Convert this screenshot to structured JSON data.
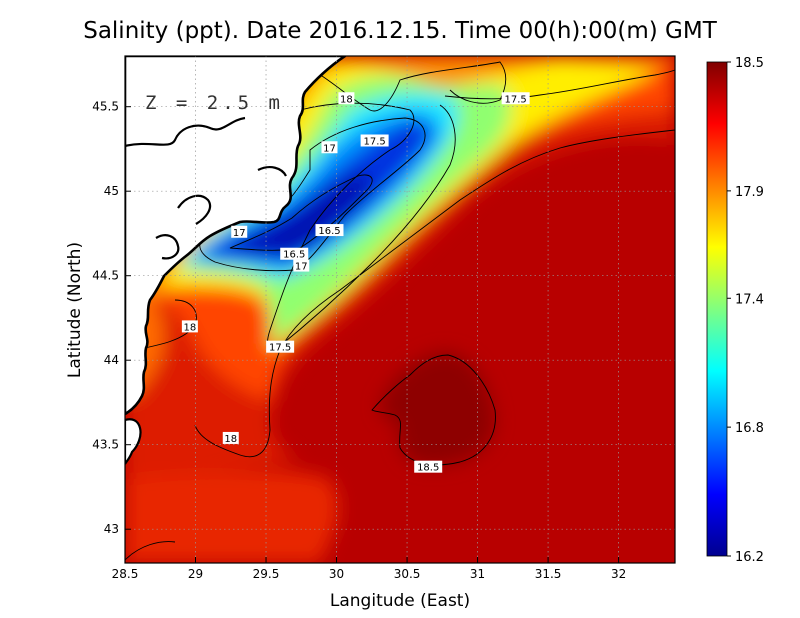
{
  "title": "Salinity (ppt). Date 2016.12.15. Time 00(h):00(m) GMT",
  "depth_label": "Z = 2.5 m",
  "xlabel": "Langitude (East)",
  "ylabel": "Latitude (North)",
  "chart_data": {
    "type": "heatmap",
    "variable": "Salinity (ppt)",
    "xlim": [
      28.5,
      32.4
    ],
    "ylim": [
      42.8,
      45.8
    ],
    "x_ticks": [
      {
        "v": 28.5,
        "label": "28.5"
      },
      {
        "v": 29,
        "label": "29"
      },
      {
        "v": 29.5,
        "label": "29.5"
      },
      {
        "v": 30,
        "label": "30"
      },
      {
        "v": 30.5,
        "label": "30.5"
      },
      {
        "v": 31,
        "label": "31"
      },
      {
        "v": 31.5,
        "label": "31.5"
      },
      {
        "v": 32,
        "label": "32"
      }
    ],
    "y_ticks": [
      {
        "v": 43,
        "label": "43"
      },
      {
        "v": 43.5,
        "label": "43.5"
      },
      {
        "v": 44,
        "label": "44"
      },
      {
        "v": 44.5,
        "label": "44.5"
      },
      {
        "v": 45,
        "label": "45"
      },
      {
        "v": 45.5,
        "label": "45.5"
      }
    ],
    "grid": true,
    "colorbar": {
      "min": 16.2,
      "max": 18.5,
      "ticks": [
        {
          "v": 16.2,
          "label": "16.2"
        },
        {
          "v": 16.8,
          "label": "16.8"
        },
        {
          "v": 17.4,
          "label": "17.4"
        },
        {
          "v": 17.9,
          "label": "17.9"
        },
        {
          "v": 18.5,
          "label": "18.5"
        }
      ],
      "colors": [
        "#00008f",
        "#0000ff",
        "#0080ff",
        "#00ffff",
        "#80ff80",
        "#ffff00",
        "#ff8000",
        "#ff0000",
        "#800000"
      ]
    },
    "contour_labels": [
      {
        "text": "18",
        "x": 30.07,
        "y": 45.55
      },
      {
        "text": "17.5",
        "x": 31.27,
        "y": 45.55
      },
      {
        "text": "17.5",
        "x": 30.27,
        "y": 45.3
      },
      {
        "text": "17",
        "x": 29.95,
        "y": 45.26
      },
      {
        "text": "16.5",
        "x": 29.95,
        "y": 44.77
      },
      {
        "text": "17",
        "x": 29.31,
        "y": 44.76
      },
      {
        "text": "16.5",
        "x": 29.7,
        "y": 44.63
      },
      {
        "text": "17",
        "x": 29.75,
        "y": 44.56
      },
      {
        "text": "18",
        "x": 28.96,
        "y": 44.2
      },
      {
        "text": "17.5",
        "x": 29.6,
        "y": 44.08
      },
      {
        "text": "18",
        "x": 29.25,
        "y": 43.54
      },
      {
        "text": "18.5",
        "x": 30.65,
        "y": 43.37
      }
    ]
  },
  "colors": {
    "land": "#ffffff",
    "coast": "#000000",
    "grid": "#999999"
  }
}
